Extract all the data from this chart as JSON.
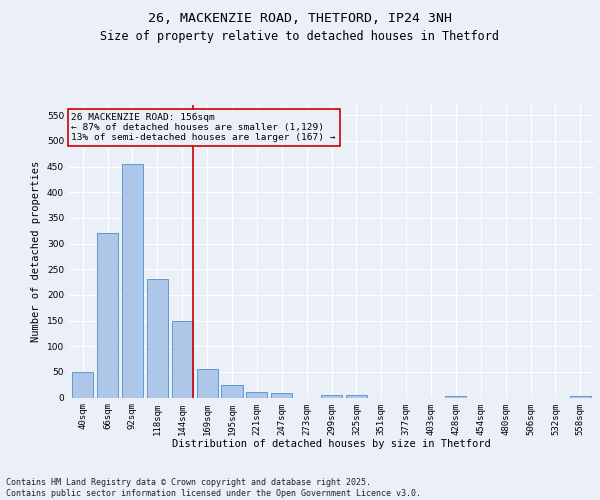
{
  "title": "26, MACKENZIE ROAD, THETFORD, IP24 3NH",
  "subtitle": "Size of property relative to detached houses in Thetford",
  "xlabel": "Distribution of detached houses by size in Thetford",
  "ylabel": "Number of detached properties",
  "categories": [
    "40sqm",
    "66sqm",
    "92sqm",
    "118sqm",
    "144sqm",
    "169sqm",
    "195sqm",
    "221sqm",
    "247sqm",
    "273sqm",
    "299sqm",
    "325sqm",
    "351sqm",
    "377sqm",
    "403sqm",
    "428sqm",
    "454sqm",
    "480sqm",
    "506sqm",
    "532sqm",
    "558sqm"
  ],
  "values": [
    50,
    320,
    455,
    230,
    150,
    55,
    25,
    10,
    8,
    0,
    5,
    5,
    0,
    0,
    0,
    3,
    0,
    0,
    0,
    0,
    3
  ],
  "bar_color": "#aec6e8",
  "bar_edge_color": "#5b9bd5",
  "vline_color": "#cc0000",
  "vline_pos": 4.425,
  "annotation_line1": "26 MACKENZIE ROAD: 156sqm",
  "annotation_line2": "← 87% of detached houses are smaller (1,129)",
  "annotation_line3": "13% of semi-detached houses are larger (167) →",
  "annotation_box_edgecolor": "#cc0000",
  "ylim": [
    0,
    570
  ],
  "yticks": [
    0,
    50,
    100,
    150,
    200,
    250,
    300,
    350,
    400,
    450,
    500,
    550
  ],
  "footer_line1": "Contains HM Land Registry data © Crown copyright and database right 2025.",
  "footer_line2": "Contains public sector information licensed under the Open Government Licence v3.0.",
  "background_color": "#eaeff8",
  "grid_color": "#ffffff",
  "title_fontsize": 9.5,
  "subtitle_fontsize": 8.5,
  "axis_label_fontsize": 7.5,
  "tick_fontsize": 6.5,
  "annotation_fontsize": 6.8,
  "footer_fontsize": 6.0
}
